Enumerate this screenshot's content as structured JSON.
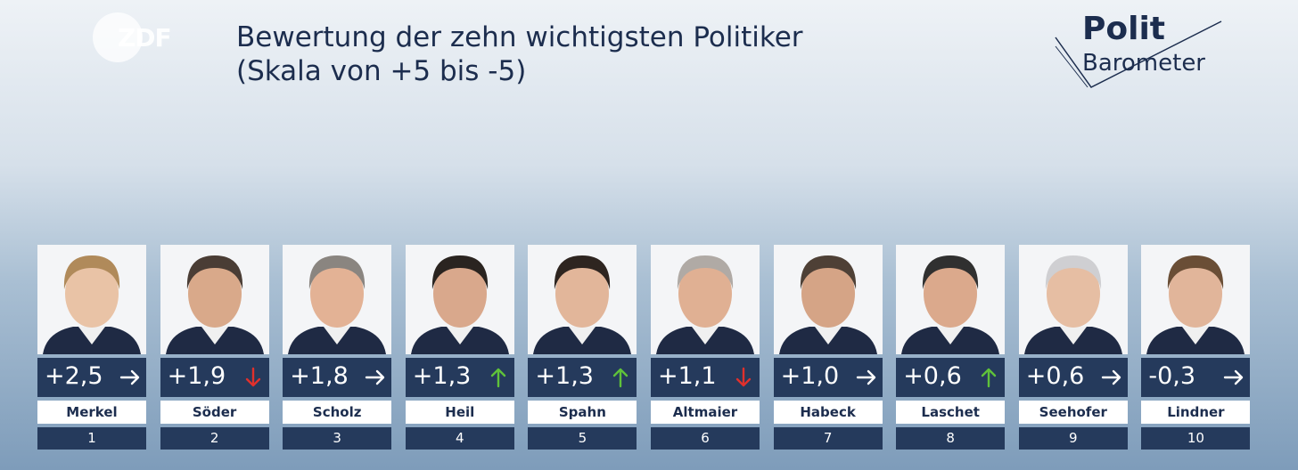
{
  "header": {
    "title": "Bewertung der zehn wichtigsten Politiker",
    "subtitle": "(Skala von +5 bis -5)"
  },
  "logos": {
    "channel": "ZDF",
    "brand_top": "Polit",
    "brand_bottom": "Barometer"
  },
  "cards": [
    {
      "name": "Merkel",
      "score": "+2,5",
      "trend": "flat",
      "rank": 1
    },
    {
      "name": "Söder",
      "score": "+1,9",
      "trend": "down",
      "rank": 2
    },
    {
      "name": "Scholz",
      "score": "+1,8",
      "trend": "flat",
      "rank": 3
    },
    {
      "name": "Heil",
      "score": "+1,3",
      "trend": "up",
      "rank": 4
    },
    {
      "name": "Spahn",
      "score": "+1,3",
      "trend": "up",
      "rank": 5
    },
    {
      "name": "Altmaier",
      "score": "+1,1",
      "trend": "down",
      "rank": 6
    },
    {
      "name": "Habeck",
      "score": "+1,0",
      "trend": "flat",
      "rank": 7
    },
    {
      "name": "Laschet",
      "score": "+0,6",
      "trend": "up",
      "rank": 8
    },
    {
      "name": "Seehofer",
      "score": "+0,6",
      "trend": "flat",
      "rank": 9
    },
    {
      "name": "Lindner",
      "score": "-0,3",
      "trend": "flat",
      "rank": 10
    }
  ]
}
